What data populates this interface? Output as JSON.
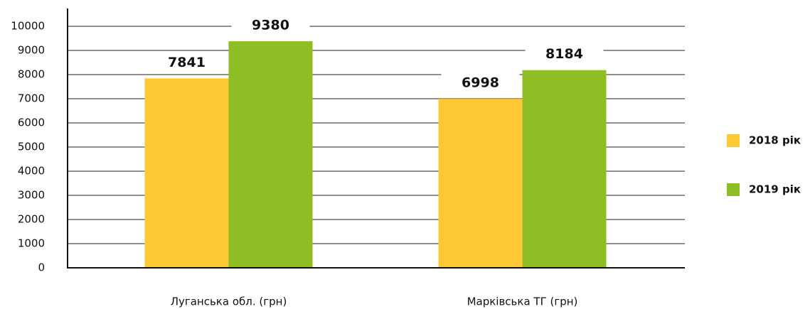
{
  "chart_data": {
    "type": "bar",
    "categories": [
      "Луганська обл. (грн)",
      "Марківська ТГ (грн)"
    ],
    "series": [
      {
        "name": "2018 рік",
        "color": "#fcc934",
        "values": [
          7841,
          6998
        ]
      },
      {
        "name": "2019 рік",
        "color": "#8fbe24",
        "values": [
          9380,
          8184
        ]
      }
    ],
    "ylim": [
      0,
      10000
    ],
    "yticks": [
      0,
      1000,
      2000,
      3000,
      4000,
      5000,
      6000,
      7000,
      8000,
      9000,
      10000
    ],
    "grid": true,
    "legend": "right"
  }
}
